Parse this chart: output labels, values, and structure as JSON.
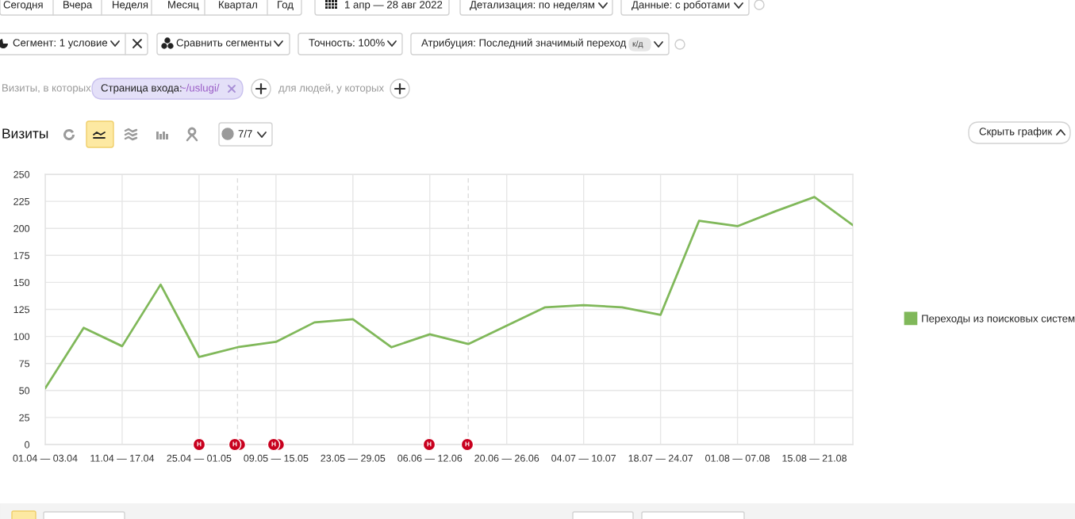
{
  "chart_data": {
    "type": "line",
    "title": "Визиты",
    "x": [
      "2022-04-03",
      "2022-04-10",
      "2022-04-17",
      "2022-04-24",
      "2022-05-01",
      "2022-05-08",
      "2022-05-15",
      "2022-05-22",
      "2022-05-29",
      "2022-06-05",
      "2022-06-12",
      "2022-06-19",
      "2022-06-26",
      "2022-07-03",
      "2022-07-10",
      "2022-07-17",
      "2022-07-24",
      "2022-07-31",
      "2022-08-07",
      "2022-08-14",
      "2022-08-21",
      "2022-08-28"
    ],
    "series": [
      {
        "name": "Переходы из поисковых систем",
        "color": "#80b85a",
        "values": [
          52,
          108,
          91,
          148,
          81,
          90,
          95,
          113,
          116,
          90,
          102,
          93,
          110,
          127,
          129,
          127,
          120,
          207,
          202,
          216,
          229,
          203
        ]
      }
    ],
    "xlim": [
      "2022-04-03",
      "2022-08-28"
    ],
    "xticks": [
      {
        "value": "2022-04-03",
        "label": "01.04 — 03.04"
      },
      {
        "value": "2022-04-17",
        "label": "11.04 — 17.04"
      },
      {
        "value": "2022-05-01",
        "label": "25.04 — 01.05"
      },
      {
        "value": "2022-05-15",
        "label": "09.05 — 15.05"
      },
      {
        "value": "2022-05-29",
        "label": "23.05 — 29.05"
      },
      {
        "value": "2022-06-12",
        "label": "06.06 — 12.06"
      },
      {
        "value": "2022-06-26",
        "label": "20.06 — 26.06"
      },
      {
        "value": "2022-07-10",
        "label": "04.07 — 10.07"
      },
      {
        "value": "2022-07-24",
        "label": "18.07 — 24.07"
      },
      {
        "value": "2022-08-07",
        "label": "01.08 — 07.08"
      },
      {
        "value": "2022-08-21",
        "label": "15.08 — 21.08"
      }
    ],
    "ylim": [
      0,
      250
    ],
    "yticks": [
      0,
      25,
      50,
      75,
      100,
      125,
      150,
      175,
      200,
      225,
      250
    ],
    "grid": true,
    "legend": "right",
    "ref_lines": [
      {
        "axis": "x",
        "value": "2022-05-08",
        "line_style": "dashed",
        "color": "#dcdcdc"
      },
      {
        "axis": "x",
        "value": "2022-06-19",
        "line_style": "dashed",
        "color": "#dcdcdc"
      }
    ],
    "annotations": [
      "Сегодня",
      "Вчера",
      "Неделя",
      "Месяц",
      "Квартал",
      "Год",
      "1 апр — 28 авг 2022",
      "Детализация: по неделям",
      "Данные: с роботами",
      "Сегмент: 1 условие",
      "Сравнить сегменты",
      "Точность: 100%",
      "Атрибуция: Последний значимый переход",
      "к/д",
      "Визиты, в которых",
      "Страница входа:",
      "~/uslugi/",
      "для людей, у которых",
      "7/7",
      "Скрыть график",
      "Н",
      "Н",
      "Н",
      "Н",
      "Н"
    ]
  }
}
